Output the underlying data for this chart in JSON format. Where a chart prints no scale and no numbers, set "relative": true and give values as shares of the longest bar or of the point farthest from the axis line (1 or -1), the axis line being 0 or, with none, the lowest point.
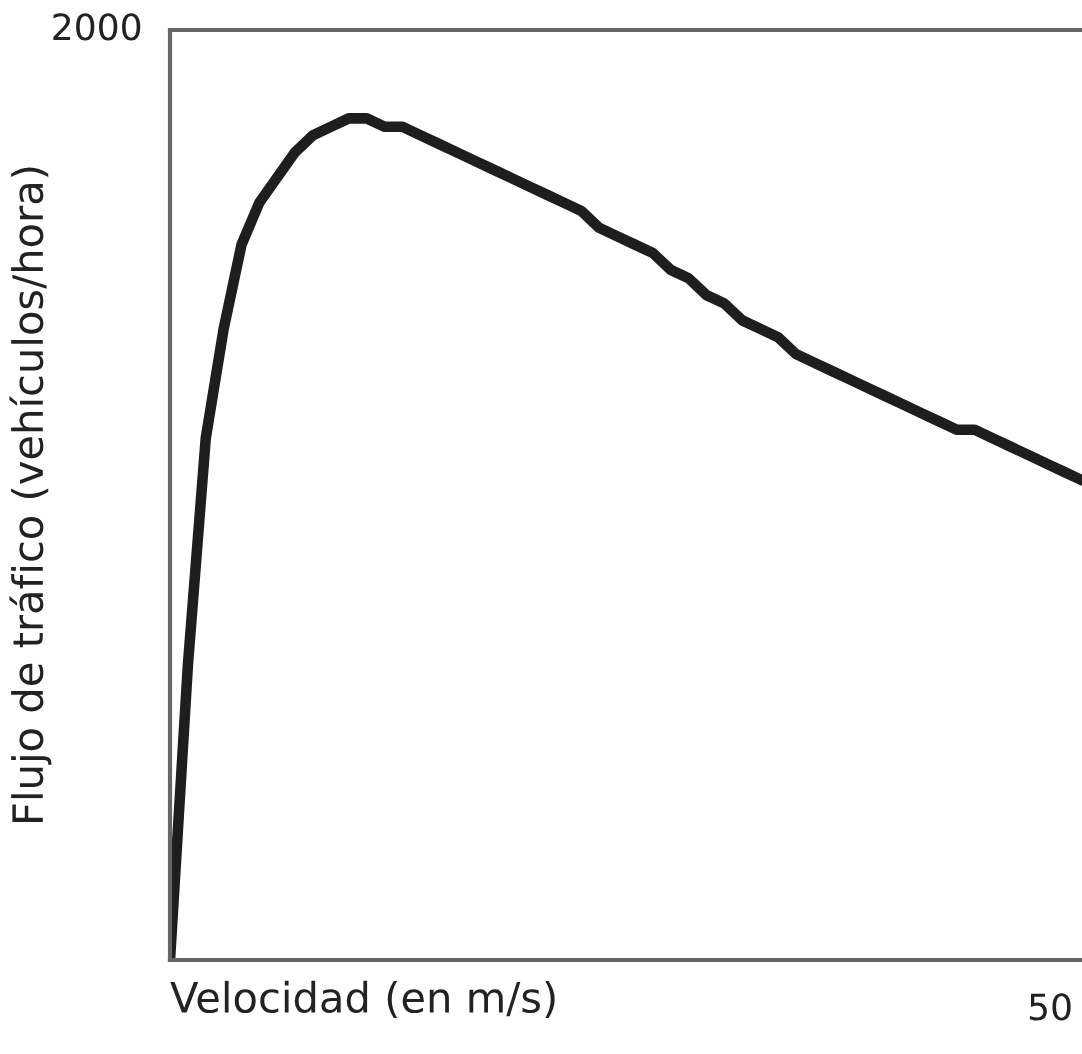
{
  "chart_data": {
    "type": "line",
    "xlabel": "Velocidad (en m/s)",
    "ylabel": "Flujo de tráfico (vehículos/hora)",
    "relative": true,
    "annotations": [
      "2000",
      "50"
    ],
    "categories": [
      null,
      null,
      null,
      null,
      null,
      null,
      null,
      null,
      null,
      null,
      null,
      null,
      null,
      null,
      null,
      null,
      null,
      null,
      null,
      null,
      null,
      null,
      null,
      null,
      null,
      null,
      null,
      null,
      null,
      null,
      null,
      null,
      null,
      null,
      null,
      null,
      null,
      null,
      null,
      null,
      null,
      null,
      null,
      null,
      null,
      null,
      null,
      null,
      null,
      null,
      null,
      null
    ],
    "series": [
      {
        "color": "#1e1e1e",
        "values": [
          0,
          0.35,
          0.62,
          0.75,
          0.85,
          0.9,
          0.93,
          0.96,
          0.98,
          0.99,
          1,
          1,
          0.99,
          0.99,
          0.98,
          0.97,
          0.96,
          0.95,
          0.94,
          0.93,
          0.92,
          0.91,
          0.9,
          0.89,
          0.87,
          0.86,
          0.85,
          0.84,
          0.82,
          0.81,
          0.79,
          0.78,
          0.76,
          0.75,
          0.74,
          0.72,
          0.71,
          0.7,
          0.69,
          0.68,
          0.67,
          0.66,
          0.65,
          0.64,
          0.63,
          0.63,
          0.62,
          0.61,
          0.6,
          0.59,
          0.58,
          0.57
        ]
      }
    ],
    "marker": "none",
    "line_style": "solid"
  }
}
